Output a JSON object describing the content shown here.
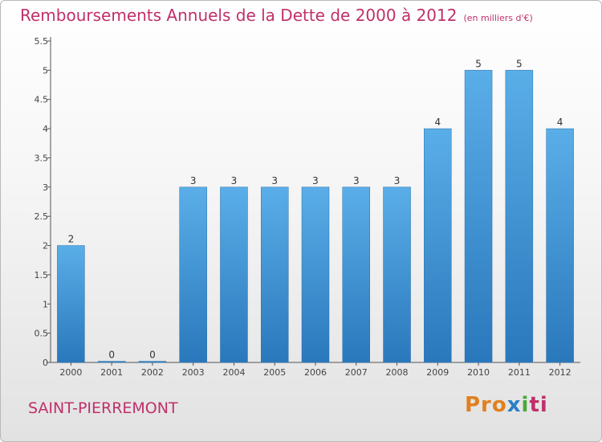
{
  "title": "Remboursements Annuels de la Dette de 2000 à 2012",
  "subtitle": "(en milliers d'€)",
  "place": "SAINT-PIERREMONT",
  "logo": {
    "p1": "Pro",
    "p2": "x",
    "p3": "i",
    "p4": "ti"
  },
  "colors": {
    "bar_top": "#5aaee8",
    "bar_bottom": "#2a78bc",
    "title": "#c0306a"
  },
  "chart_data": {
    "type": "bar",
    "categories": [
      "2000",
      "2001",
      "2002",
      "2003",
      "2004",
      "2005",
      "2006",
      "2007",
      "2008",
      "2009",
      "2010",
      "2011",
      "2012"
    ],
    "values": [
      2,
      0,
      0,
      3,
      3,
      3,
      3,
      3,
      3,
      4,
      5,
      5,
      4
    ],
    "data_labels": [
      "2",
      "0",
      "0",
      "3",
      "3",
      "3",
      "3",
      "3",
      "3",
      "4",
      "5",
      "5",
      "4"
    ],
    "ylim": [
      0,
      5.5
    ],
    "yticks": [
      0,
      0.5,
      1,
      1.5,
      2,
      2.5,
      3,
      3.5,
      4,
      4.5,
      5,
      5.5
    ],
    "ytick_labels": [
      "0",
      "0.5",
      "1",
      "1.5",
      "2",
      "2.5",
      "3",
      "3.5",
      "4",
      "4.5",
      "5",
      "5.5"
    ],
    "grid": false,
    "legend": "none"
  }
}
